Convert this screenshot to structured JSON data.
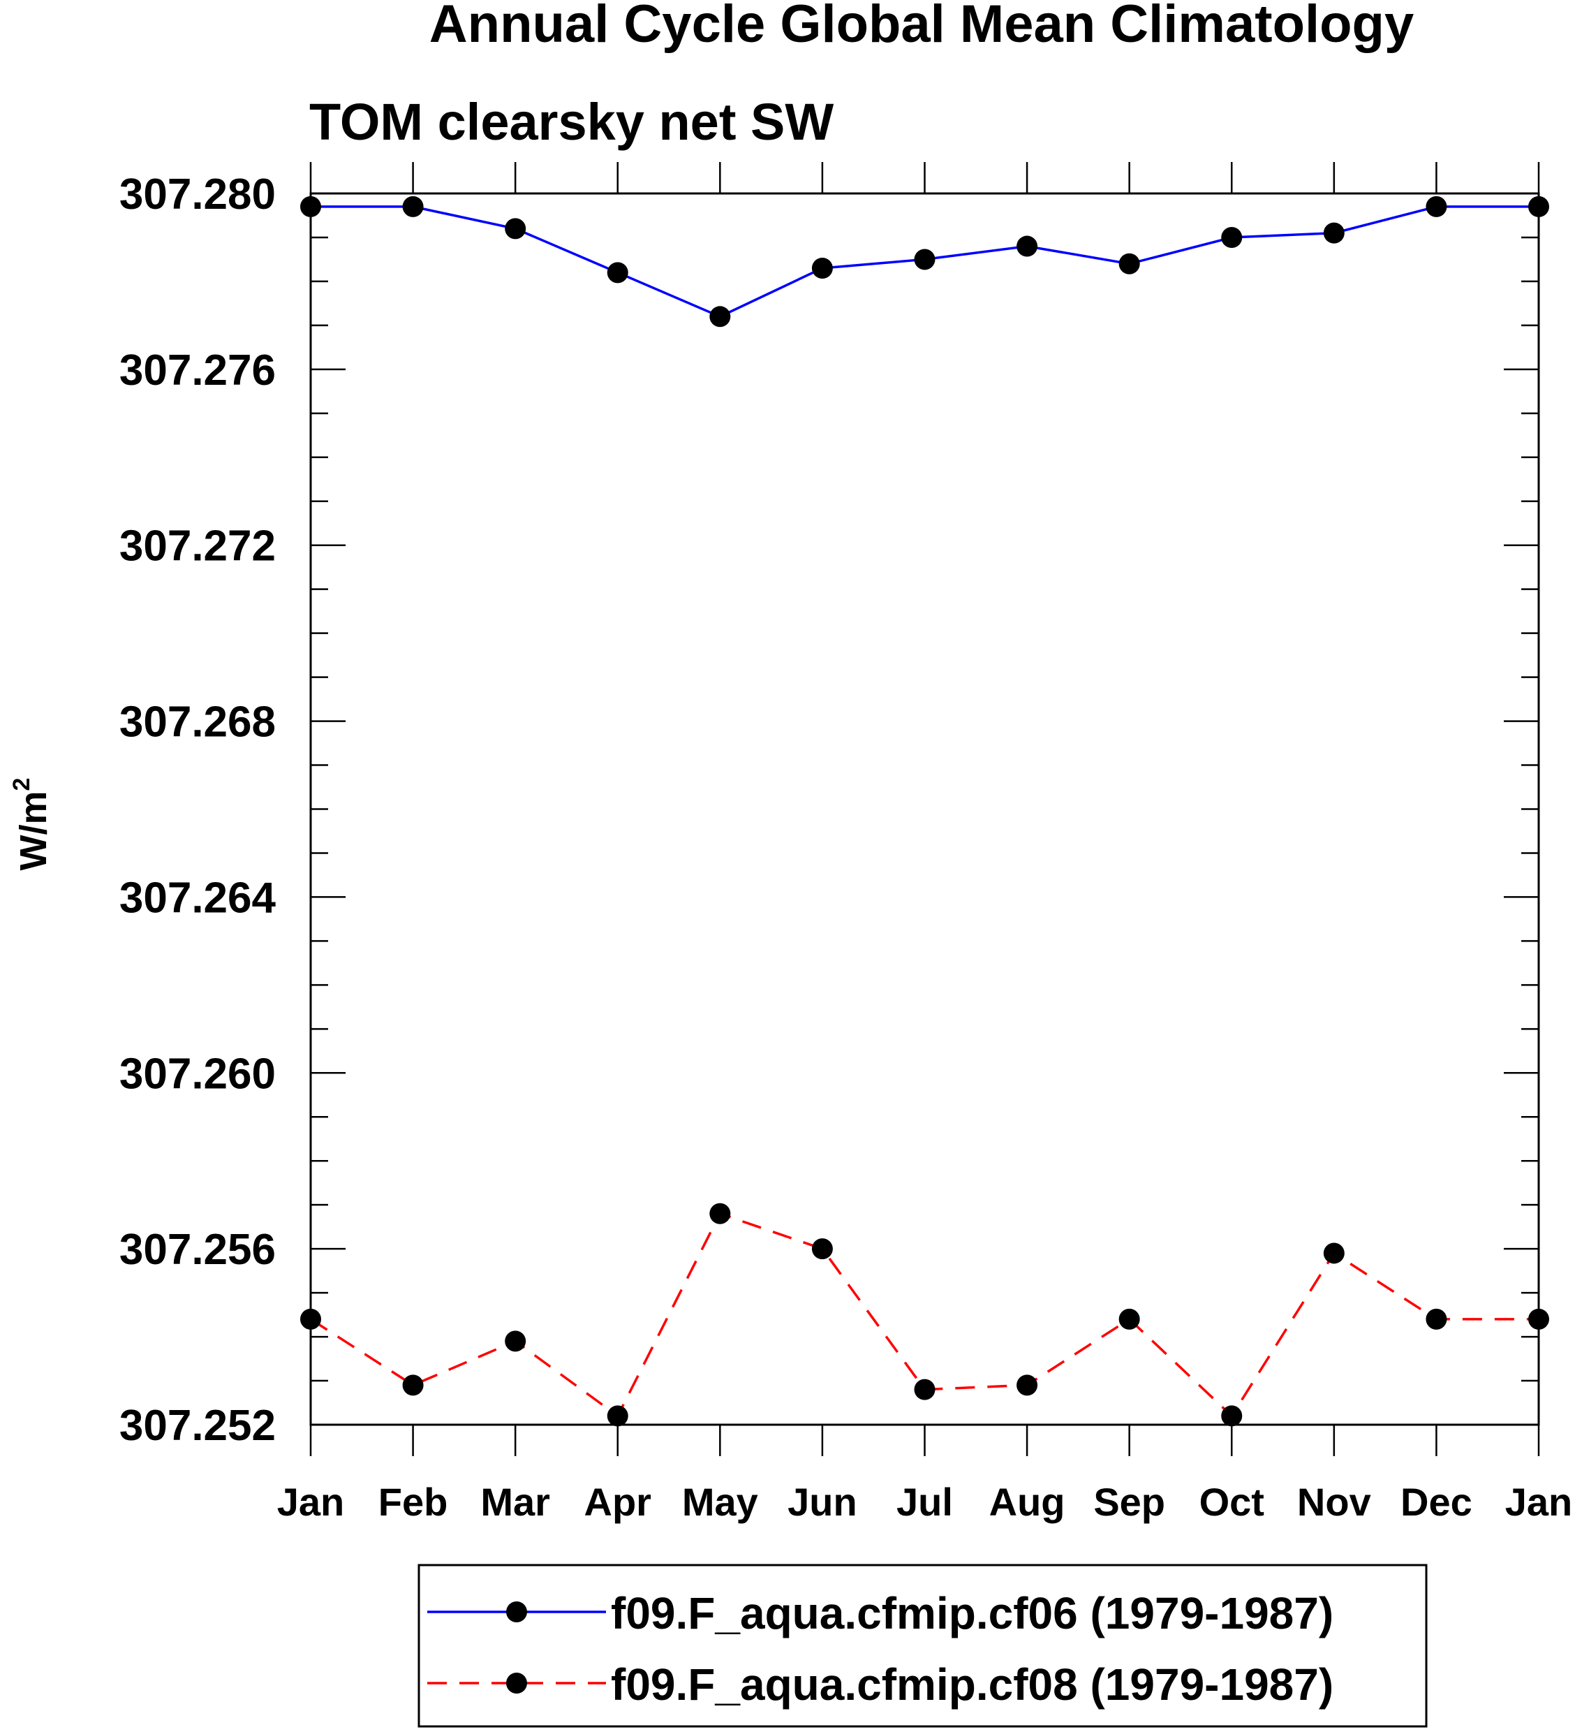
{
  "chart_data": {
    "type": "line",
    "title": "Annual Cycle Global Mean Climatology",
    "subtitle": "TOM clearsky net SW",
    "ylabel": "W/m",
    "ylabel_superscript": "2",
    "xlabel": "",
    "categories": [
      "Jan",
      "Feb",
      "Mar",
      "Apr",
      "May",
      "Jun",
      "Jul",
      "Aug",
      "Sep",
      "Oct",
      "Nov",
      "Dec",
      "Jan"
    ],
    "ylim": [
      307.252,
      307.28
    ],
    "yticks": [
      "307.280",
      "307.276",
      "307.272",
      "307.268",
      "307.264",
      "307.260",
      "307.256",
      "307.252"
    ],
    "ytick_values": [
      307.28,
      307.276,
      307.272,
      307.268,
      307.264,
      307.26,
      307.256,
      307.252
    ],
    "y_minor_step": 0.001,
    "grid": false,
    "legend_position": "bottom-center",
    "series": [
      {
        "name": "f09.F_aqua.cfmip.cf06 (1979-1987)",
        "color": "#0000ff",
        "line_style": "solid",
        "marker": "filled-circle",
        "values": [
          307.2797,
          307.2797,
          307.2792,
          307.2782,
          307.2772,
          307.2783,
          307.2785,
          307.2788,
          307.2784,
          307.279,
          307.2791,
          307.2797,
          307.2797
        ]
      },
      {
        "name": "f09.F_aqua.cfmip.cf08 (1979-1987)",
        "color": "#ff0000",
        "line_style": "dashed",
        "marker": "filled-circle",
        "values": [
          307.2544,
          307.2529,
          307.2539,
          307.2522,
          307.2568,
          307.256,
          307.2528,
          307.2529,
          307.2544,
          307.2522,
          307.2559,
          307.2544,
          307.2544
        ]
      }
    ]
  }
}
